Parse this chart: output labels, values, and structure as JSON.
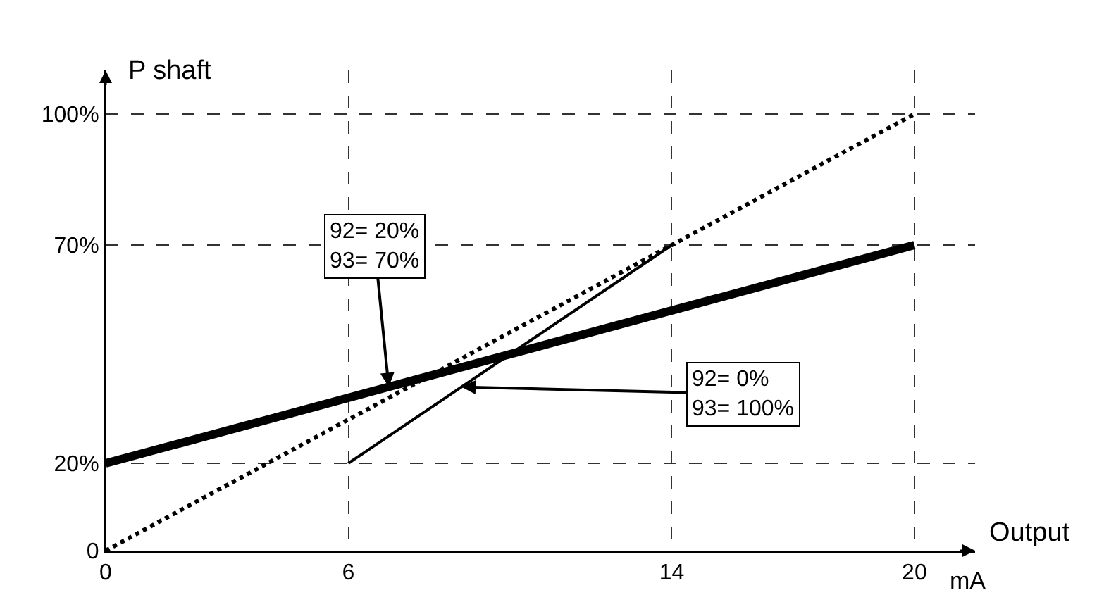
{
  "chart_data": {
    "type": "line",
    "ylabel": "P shaft",
    "xlabel": "Output",
    "annotations": [
      "mA",
      {
        "text": "92= 20%\n93= 70%",
        "x": 7,
        "y": 37.5
      },
      {
        "text": "92= 0%\n93= 100%",
        "x": 8.8,
        "y": 37.5
      }
    ],
    "series": [
      {
        "x": [
          0,
          20
        ],
        "values": [
          20,
          70
        ],
        "color": "#000000",
        "line_style": "solid"
      },
      {
        "x": [
          6,
          14
        ],
        "values": [
          20,
          70
        ],
        "color": "#000000",
        "line_style": "solid"
      },
      {
        "x": [
          0,
          20
        ],
        "values": [
          0,
          100
        ],
        "color": "#000000",
        "line_style": "dotted"
      }
    ],
    "xlim": [
      0,
      21.5
    ],
    "ylim": [
      0,
      110
    ],
    "xticks": [
      0,
      6,
      14,
      20
    ],
    "yticks": [
      0,
      {
        "value": 20,
        "label": "20%"
      },
      {
        "value": 70,
        "label": "70%"
      },
      {
        "value": 100,
        "label": "100%"
      }
    ],
    "grid": true,
    "marker": "none"
  }
}
